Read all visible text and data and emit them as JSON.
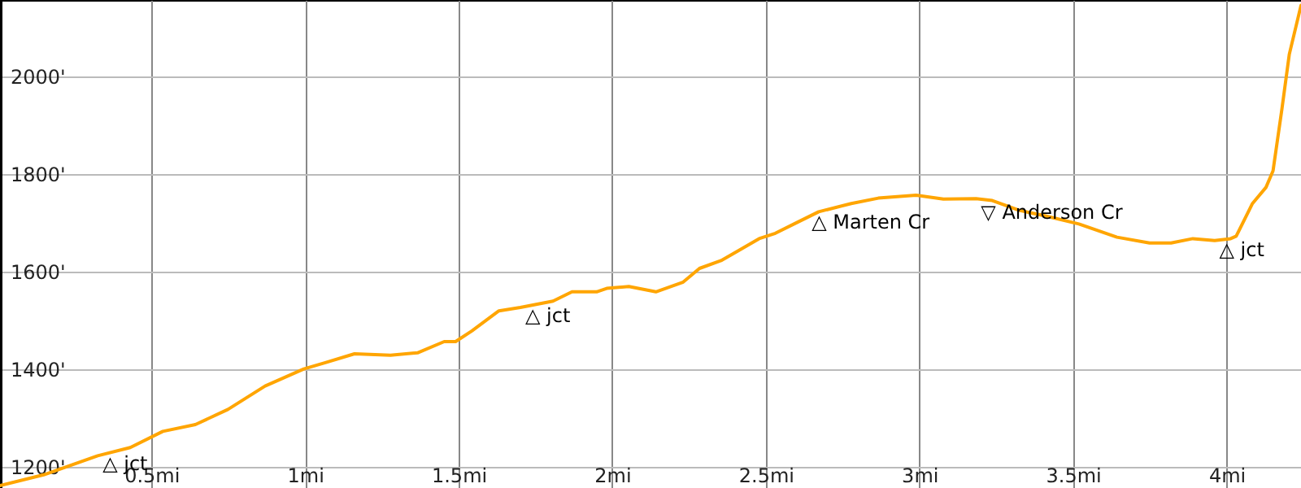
{
  "chart_data": {
    "type": "line",
    "color": "#ffa500",
    "grid": true,
    "xlim": [
      0.007,
      4.242
    ],
    "ylim": [
      1157,
      2157
    ],
    "xticks": [
      {
        "value": 0.5,
        "label": "0.5mi"
      },
      {
        "value": 1,
        "label": "1mi"
      },
      {
        "value": 1.5,
        "label": "1.5mi"
      },
      {
        "value": 2,
        "label": "2mi"
      },
      {
        "value": 2.5,
        "label": "2.5mi"
      },
      {
        "value": 3,
        "label": "3mi"
      },
      {
        "value": 3.5,
        "label": "3.5mi"
      },
      {
        "value": 4,
        "label": "4mi"
      }
    ],
    "yticks": [
      {
        "value": 1200,
        "label": "1200'"
      },
      {
        "value": 1400,
        "label": "1400'"
      },
      {
        "value": 1600,
        "label": "1600'"
      },
      {
        "value": 1800,
        "label": "1800'"
      },
      {
        "value": 2000,
        "label": "2000'"
      }
    ],
    "x": [
      0.007,
      0.149,
      0.325,
      0.431,
      0.537,
      0.643,
      0.749,
      0.87,
      0.996,
      1.066,
      1.161,
      1.278,
      1.366,
      1.453,
      1.49,
      1.543,
      1.631,
      1.701,
      1.807,
      1.869,
      1.949,
      1.982,
      2.054,
      2.142,
      2.231,
      2.284,
      2.354,
      2.407,
      2.478,
      2.531,
      2.601,
      2.672,
      2.778,
      2.866,
      2.989,
      3.078,
      3.184,
      3.237,
      3.325,
      3.413,
      3.519,
      3.643,
      3.749,
      3.819,
      3.89,
      3.961,
      4.013,
      4.031,
      4.084,
      4.128,
      4.151,
      4.18,
      4.204,
      4.242
    ],
    "values": [
      1162,
      1184,
      1223,
      1240,
      1273,
      1287,
      1318,
      1366,
      1401,
      1414,
      1432,
      1429,
      1434,
      1457,
      1457,
      1479,
      1520,
      1527,
      1540,
      1559,
      1559,
      1566,
      1570,
      1559,
      1579,
      1607,
      1623,
      1642,
      1668,
      1679,
      1701,
      1723,
      1740,
      1751,
      1757,
      1749,
      1750,
      1746,
      1726,
      1714,
      1698,
      1671,
      1659,
      1659,
      1668,
      1664,
      1668,
      1673,
      1740,
      1773,
      1807,
      1934,
      2046,
      2146
    ],
    "annotations": [
      {
        "text": "△ jct",
        "x": 0.378,
        "y": 1231
      },
      {
        "text": "△ jct",
        "x": 1.754,
        "y": 1533
      },
      {
        "text": "△ Marten Cr",
        "x": 2.686,
        "y": 1725
      },
      {
        "text": "▽ Anderson Cr",
        "x": 3.237,
        "y": 1746
      },
      {
        "text": "△ jct",
        "x": 4.013,
        "y": 1668
      }
    ]
  }
}
